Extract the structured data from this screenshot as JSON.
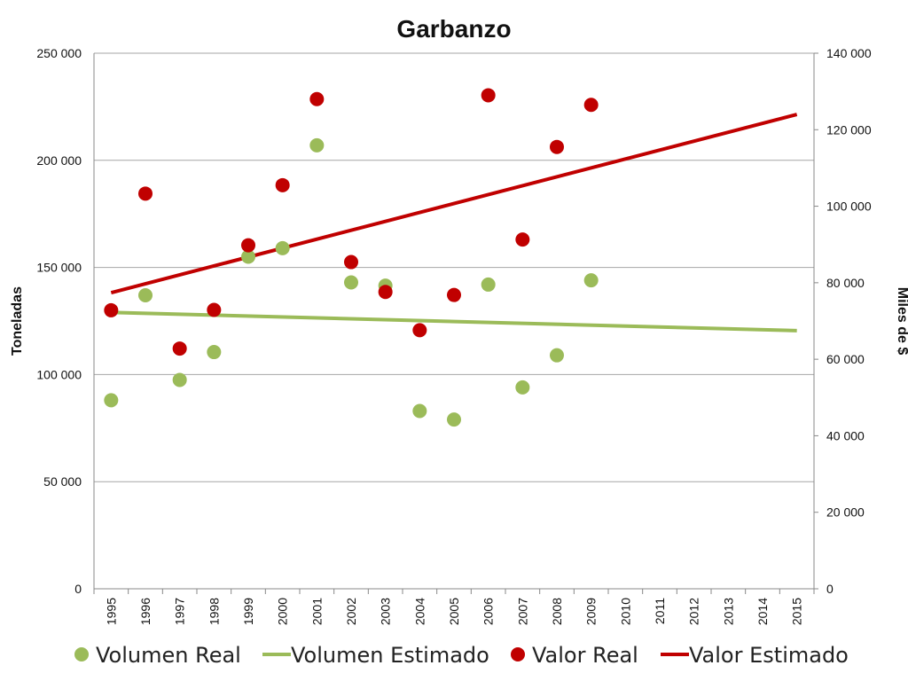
{
  "chart_data": {
    "type": "scatter",
    "title": "Garbanzo",
    "ylabel": "Toneladas",
    "y2label": "Miles de $",
    "categories": [
      "1995",
      "1996",
      "1997",
      "1998",
      "1999",
      "2000",
      "2001",
      "2002",
      "2003",
      "2004",
      "2005",
      "2006",
      "2007",
      "2008",
      "2009",
      "2010",
      "2011",
      "2012",
      "2013",
      "2014",
      "2015"
    ],
    "ylim": [
      0,
      250000
    ],
    "y2lim": [
      0,
      140000
    ],
    "yticks": [
      "0",
      "50 000",
      "100 000",
      "150 000",
      "200 000",
      "250 000"
    ],
    "y2ticks": [
      "0",
      "20 000",
      "40 000",
      "60 000",
      "80 000",
      "100 000",
      "120 000",
      "140 000"
    ],
    "grid": true,
    "legend_position": "bottom",
    "series": [
      {
        "name": "Volumen Real",
        "kind": "scatter",
        "axis": "left",
        "color": "#9bbb59",
        "x": [
          "1995",
          "1996",
          "1997",
          "1998",
          "1999",
          "2000",
          "2001",
          "2002",
          "2003",
          "2004",
          "2005",
          "2006",
          "2007",
          "2008",
          "2009"
        ],
        "values": [
          88000,
          137000,
          97500,
          110500,
          155000,
          159000,
          207000,
          143000,
          141500,
          83000,
          79000,
          142000,
          94000,
          109000,
          144000
        ]
      },
      {
        "name": "Volumen Estimado",
        "kind": "line",
        "axis": "left",
        "color": "#9bbb59",
        "x": [
          "1995",
          "2015"
        ],
        "values": [
          129000,
          120500
        ]
      },
      {
        "name": "Valor Real",
        "kind": "scatter",
        "axis": "right",
        "color": "#c00000",
        "x": [
          "1995",
          "1996",
          "1997",
          "1998",
          "1999",
          "2000",
          "2001",
          "2002",
          "2003",
          "2004",
          "2005",
          "2006",
          "2007",
          "2008",
          "2009"
        ],
        "values": [
          72800,
          103300,
          62800,
          72900,
          89800,
          105500,
          128000,
          85400,
          77600,
          67600,
          76800,
          129000,
          91300,
          115500,
          126500
        ]
      },
      {
        "name": "Valor Estimado",
        "kind": "line",
        "axis": "right",
        "color": "#c00000",
        "x": [
          "1995",
          "2015"
        ],
        "values": [
          77400,
          124000
        ]
      }
    ]
  }
}
